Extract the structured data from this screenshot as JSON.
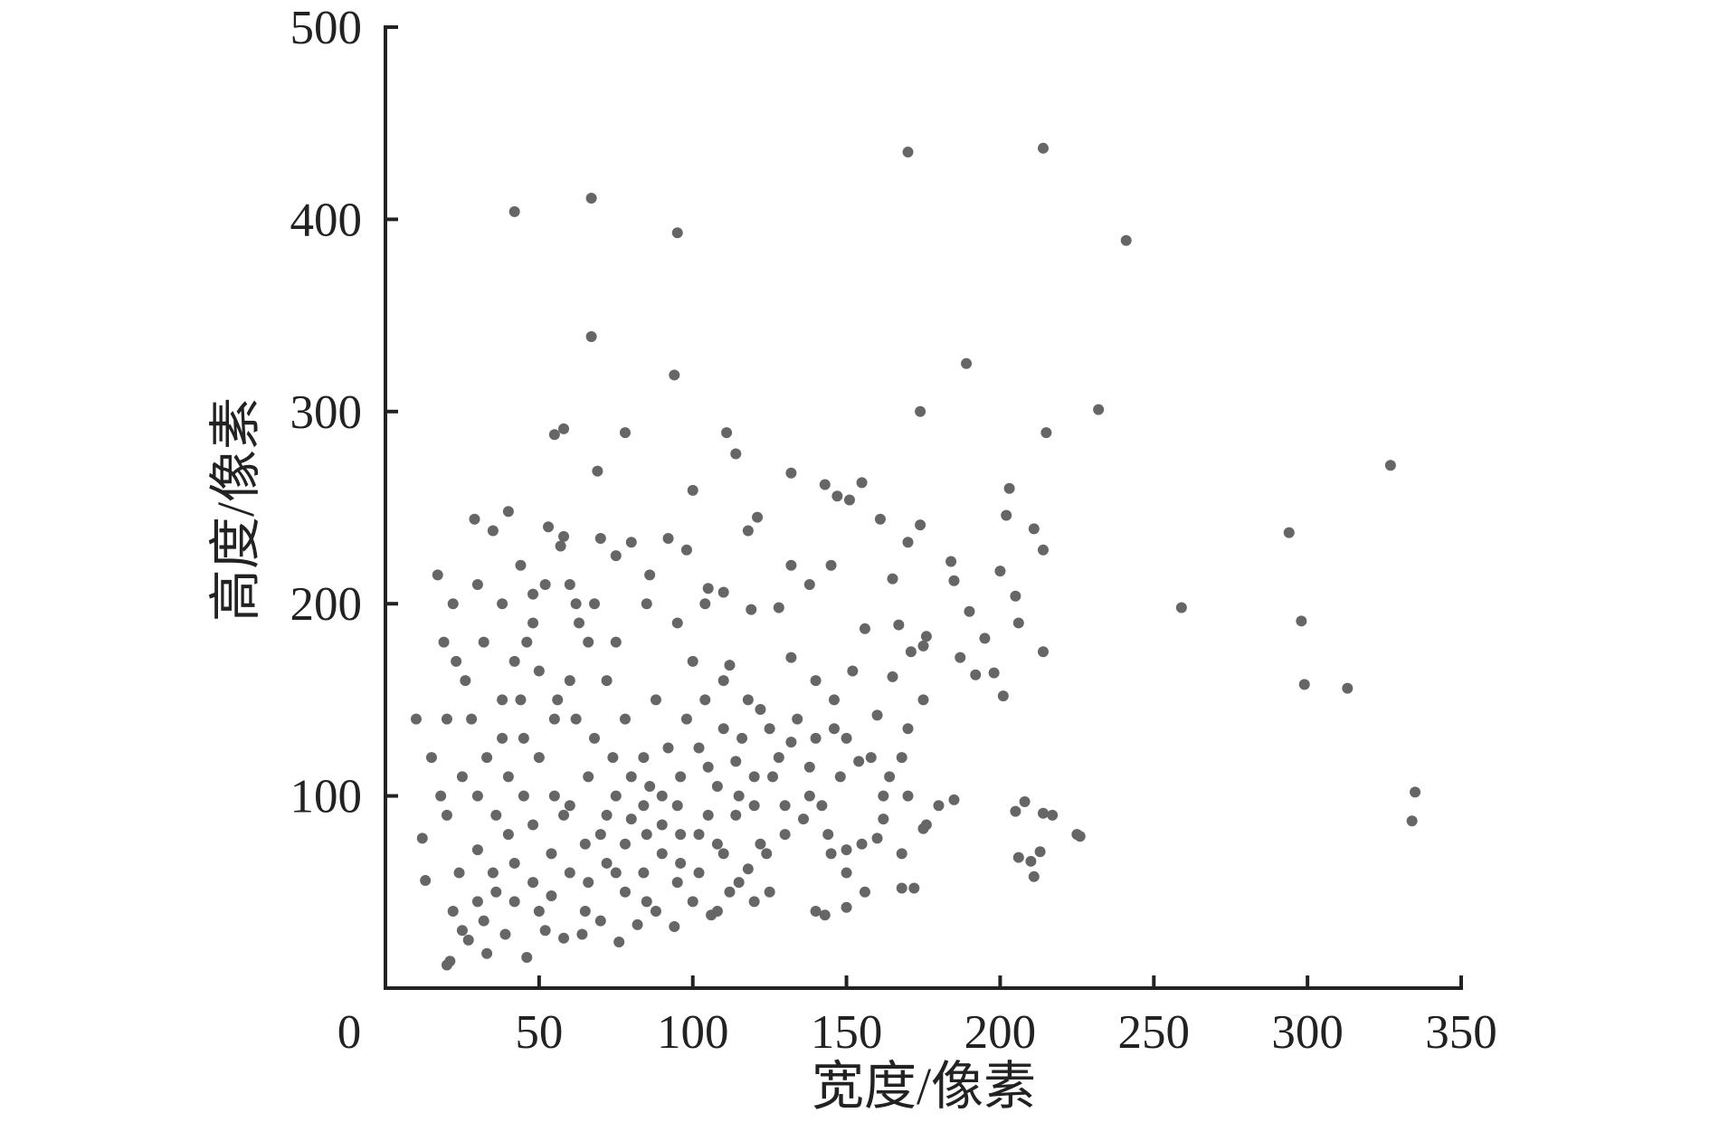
{
  "chart_data": {
    "type": "scatter",
    "x_label": "宽度/像素",
    "y_label": "高度/像素",
    "color": "#666666",
    "xlim": [
      0,
      350
    ],
    "ylim": [
      0,
      500
    ],
    "xticks": [
      0,
      50,
      100,
      150,
      200,
      250,
      300,
      350
    ],
    "yticks": [
      100,
      200,
      300,
      400,
      500
    ],
    "x": [
      170,
      214,
      42,
      67,
      95,
      241,
      67,
      94,
      189,
      174,
      232,
      327,
      215,
      78,
      58,
      55,
      111,
      69,
      100,
      114,
      132,
      143,
      155,
      147,
      151,
      203,
      202,
      211,
      214,
      294,
      259,
      298,
      299,
      313,
      335,
      334,
      205,
      208,
      214,
      217,
      225,
      226,
      206,
      210,
      213,
      211,
      174,
      170,
      184,
      185,
      200,
      205,
      206,
      214,
      195,
      190,
      187,
      192,
      198,
      201,
      121,
      118,
      132,
      128,
      110,
      105,
      119,
      138,
      145,
      156,
      161,
      165,
      167,
      171,
      175,
      176,
      165,
      150,
      160,
      170,
      168,
      175,
      185,
      180,
      176,
      175,
      172,
      168,
      160,
      155,
      150,
      145,
      140,
      143,
      150,
      120,
      125,
      20,
      21,
      25,
      30,
      35,
      40,
      45,
      50,
      55,
      60,
      28,
      33,
      38,
      42,
      48,
      52,
      57,
      62,
      66,
      72,
      78,
      84,
      90,
      96,
      102,
      108,
      115,
      122,
      130,
      138,
      146,
      154,
      162,
      25,
      18,
      15,
      12,
      13,
      10,
      17,
      22,
      29,
      35,
      40,
      44,
      48,
      53,
      58,
      63,
      70,
      75,
      80,
      86,
      92,
      98,
      104,
      112,
      118,
      125,
      132,
      140,
      22,
      27,
      33,
      39,
      46,
      52,
      58,
      64,
      70,
      76,
      82,
      88,
      94,
      100,
      106,
      112,
      118,
      124,
      130,
      136,
      142,
      148,
      24,
      30,
      36,
      42,
      48,
      54,
      60,
      66,
      72,
      78,
      84,
      90,
      96,
      102,
      108,
      114,
      120,
      126,
      132,
      138,
      144,
      150,
      156,
      162,
      168,
      26,
      32,
      38,
      44,
      50,
      56,
      62,
      68,
      74,
      80,
      86,
      92,
      98,
      104,
      110,
      116,
      122,
      128,
      134,
      140,
      146,
      152,
      158,
      164,
      170,
      36,
      42,
      48,
      54,
      60,
      66,
      72,
      78,
      84,
      90,
      96,
      102,
      108,
      114,
      120,
      45,
      55,
      65,
      75,
      85,
      95,
      105,
      115,
      65,
      75,
      85,
      95,
      105,
      110,
      20,
      20,
      19,
      23,
      30,
      32,
      40,
      50,
      58,
      70,
      80,
      88,
      100,
      110,
      95,
      85,
      75,
      68,
      60,
      46,
      38,
      30
    ],
    "values": [
      435,
      437,
      404,
      411,
      393,
      389,
      339,
      319,
      325,
      300,
      301,
      272,
      289,
      289,
      291,
      288,
      289,
      269,
      259,
      278,
      268,
      262,
      263,
      256,
      254,
      260,
      246,
      239,
      228,
      237,
      198,
      191,
      158,
      156,
      102,
      87,
      92,
      97,
      91,
      90,
      80,
      79,
      68,
      66,
      71,
      58,
      241,
      232,
      222,
      212,
      217,
      204,
      190,
      175,
      182,
      196,
      172,
      163,
      164,
      152,
      245,
      238,
      220,
      198,
      206,
      208,
      197,
      210,
      220,
      187,
      244,
      213,
      189,
      175,
      178,
      183,
      162,
      130,
      142,
      135,
      120,
      150,
      98,
      95,
      85,
      83,
      52,
      52,
      78,
      75,
      72,
      70,
      40,
      38,
      42,
      45,
      50,
      12,
      14,
      30,
      45,
      60,
      80,
      100,
      120,
      140,
      160,
      140,
      120,
      150,
      170,
      190,
      210,
      230,
      200,
      180,
      160,
      140,
      120,
      100,
      80,
      60,
      40,
      55,
      75,
      95,
      115,
      135,
      118,
      100,
      110,
      100,
      120,
      78,
      56,
      140,
      215,
      200,
      244,
      238,
      248,
      220,
      205,
      240,
      235,
      190,
      234,
      225,
      232,
      215,
      234,
      228,
      200,
      168,
      150,
      135,
      172,
      160,
      40,
      25,
      18,
      28,
      16,
      30,
      26,
      28,
      35,
      24,
      33,
      40,
      32,
      45,
      38,
      50,
      62,
      70,
      80,
      88,
      95,
      110,
      60,
      72,
      90,
      65,
      85,
      70,
      95,
      110,
      90,
      75,
      95,
      85,
      110,
      125,
      105,
      118,
      95,
      110,
      128,
      100,
      80,
      60,
      50,
      88,
      70,
      160,
      180,
      130,
      150,
      165,
      150,
      140,
      130,
      120,
      110,
      105,
      125,
      140,
      150,
      135,
      130,
      145,
      120,
      140,
      130,
      150,
      165,
      120,
      110,
      100,
      50,
      45,
      55,
      48,
      60,
      55,
      65,
      50,
      60,
      70,
      65,
      80,
      75,
      90,
      110,
      130,
      100,
      75,
      100,
      80,
      95,
      115,
      100,
      40,
      60,
      45,
      55,
      90,
      70,
      90,
      140,
      180,
      170,
      100,
      35,
      110,
      40,
      90,
      80,
      88,
      150,
      170,
      160,
      190,
      200,
      180,
      200,
      210,
      180,
      200,
      210
    ]
  }
}
